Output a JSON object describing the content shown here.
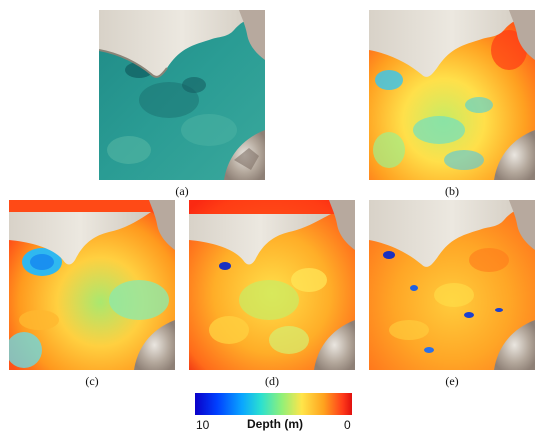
{
  "panels": {
    "a": {
      "caption": "(a)"
    },
    "b": {
      "caption": "(b)"
    },
    "c": {
      "caption": "(c)"
    },
    "d": {
      "caption": "(d)"
    },
    "e": {
      "caption": "(e)"
    }
  },
  "colorbar": {
    "min_label": "10",
    "max_label": "0",
    "title": "Depth (m)",
    "colors": [
      "#0a00c8",
      "#0aa6ff",
      "#2be0d0",
      "#8ef07a",
      "#ffe54a",
      "#ffa21e",
      "#e0100e"
    ]
  }
}
